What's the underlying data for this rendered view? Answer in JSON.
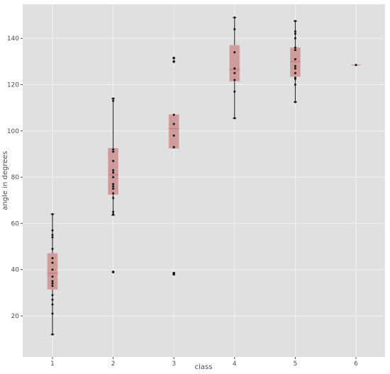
{
  "chart_data": {
    "type": "boxplot",
    "title": "",
    "xlabel": "class",
    "ylabel": "angle in degrees",
    "categories": [
      "1",
      "2",
      "3",
      "4",
      "5",
      "6"
    ],
    "ylim": [
      5,
      152
    ],
    "y_ticks": [
      20,
      40,
      60,
      80,
      100,
      120,
      140
    ],
    "grid": true,
    "legend": "none",
    "boxes": [
      {
        "category": "1",
        "whisker_low": 12,
        "q1": 31.5,
        "median": 38.5,
        "q3": 47,
        "whisker_high": 64,
        "points": [
          12,
          21,
          25,
          27,
          29,
          33,
          34,
          35,
          37,
          40,
          43,
          45,
          49,
          54,
          55,
          57,
          64
        ],
        "outliers": []
      },
      {
        "category": "2",
        "whisker_low": 63.5,
        "q1": 72.5,
        "median": 81,
        "q3": 92.5,
        "whisker_high": 114,
        "points": [
          64,
          65,
          71,
          73,
          75,
          76,
          77,
          80,
          82,
          83,
          87,
          91,
          92,
          113,
          114
        ],
        "outliers": [
          39
        ]
      },
      {
        "category": "3",
        "whisker_low": 92.5,
        "q1": 92.5,
        "median": 101,
        "q3": 107,
        "whisker_high": 107,
        "points": [
          93,
          98,
          103,
          107
        ],
        "outliers": [
          38,
          38.5,
          130,
          131.5
        ]
      },
      {
        "category": "4",
        "whisker_low": 105.5,
        "q1": 121.5,
        "median": 126.5,
        "q3": 137,
        "whisker_high": 149,
        "points": [
          105.5,
          117,
          122,
          125,
          127,
          134,
          144,
          149
        ],
        "outliers": []
      },
      {
        "category": "5",
        "whisker_low": 112.5,
        "q1": 123.5,
        "median": 130,
        "q3": 136,
        "whisker_high": 147.5,
        "points": [
          112.5,
          120,
          122.5,
          123,
          125,
          127,
          128,
          131,
          135,
          136,
          140,
          142,
          143,
          147.5
        ],
        "outliers": []
      },
      {
        "category": "6",
        "whisker_low": 128.5,
        "q1": 128.5,
        "median": 128.5,
        "q3": 128.5,
        "whisker_high": 128.5,
        "points": [
          128.5
        ],
        "outliers": []
      }
    ],
    "colors": {
      "panel": "#e0e0e0",
      "grid": "#f2f2f2",
      "box_fill": "#cf9c9c",
      "box_stroke": "#d9a7a7",
      "median": "#c86e6e",
      "whisker": "#1a1a1a",
      "point": "#111111"
    }
  }
}
